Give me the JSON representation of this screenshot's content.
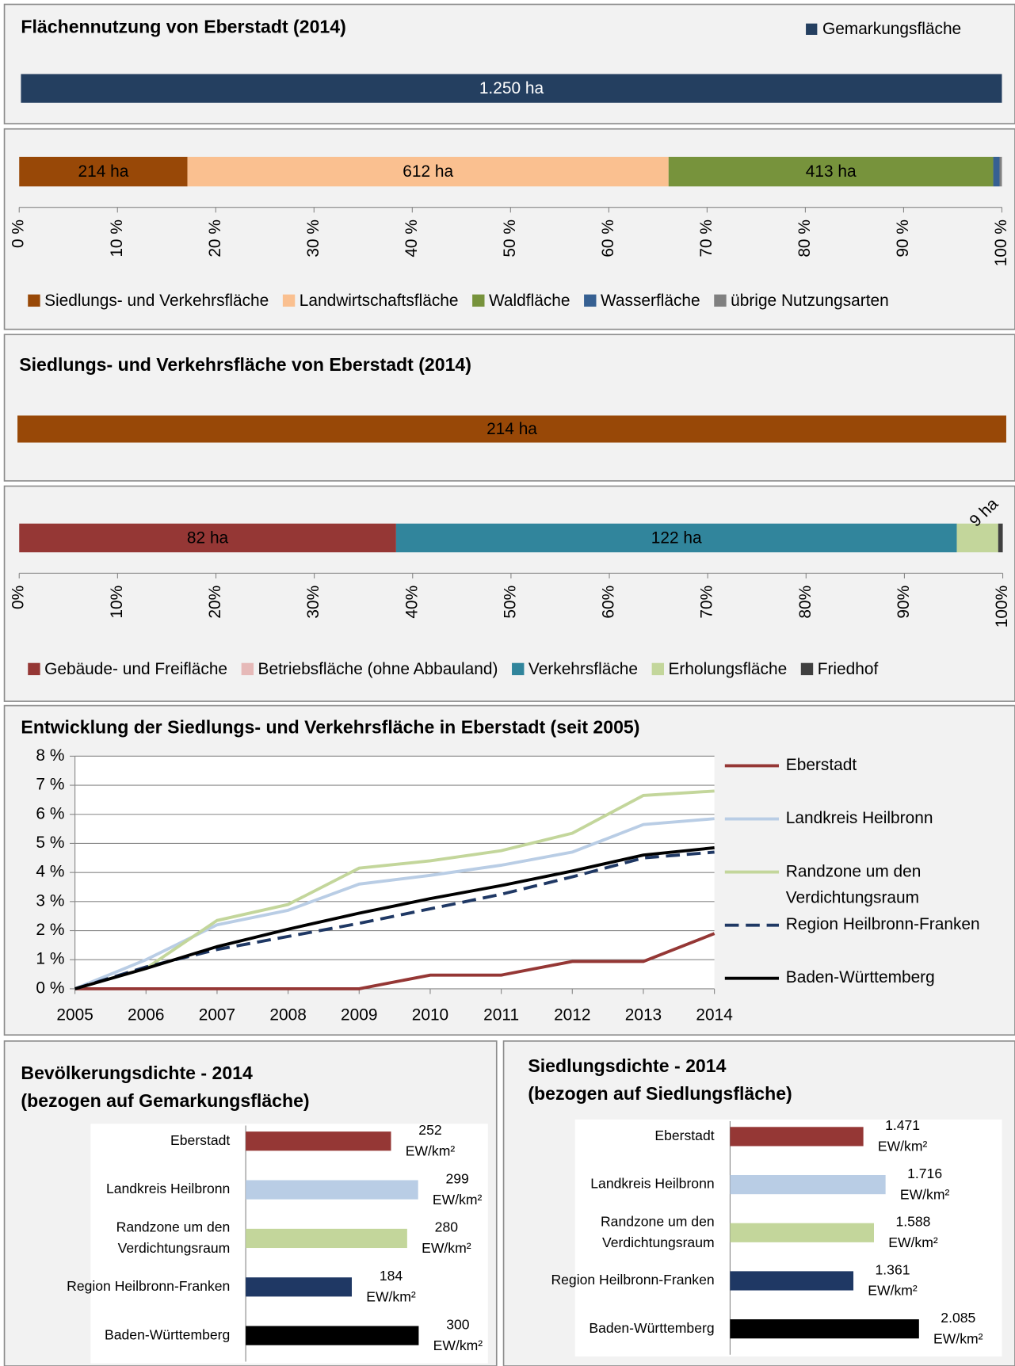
{
  "chart_data": [
    {
      "type": "bar_total",
      "title": "Flächennutzung von Eberstadt (2014)",
      "series": [
        {
          "name": "Gemarkungsfläche",
          "color": "#243f60",
          "values": [
            1250
          ],
          "value_labels": [
            "1.250 ha"
          ]
        }
      ]
    },
    {
      "type": "bar_percent",
      "series": [
        {
          "name": "Siedlungs- und Verkehrsfläche",
          "color": "#984807",
          "values": [
            214
          ],
          "value_labels": [
            "214 ha"
          ]
        },
        {
          "name": "Landwirtschaftsfläche",
          "color": "#fac090",
          "values": [
            612
          ],
          "value_labels": [
            "612 ha"
          ]
        },
        {
          "name": "Waldfläche",
          "color": "#77933c",
          "values": [
            413
          ],
          "value_labels": [
            "413 ha"
          ]
        },
        {
          "name": "Wasserfläche",
          "color": "#366092",
          "values": [
            8
          ]
        },
        {
          "name": "übrige Nutzungsarten",
          "color": "#808080",
          "values": [
            3
          ]
        }
      ],
      "xlim": [
        0,
        100
      ],
      "xticks": [
        {
          "value": 0,
          "label": "0 %"
        },
        {
          "value": 10,
          "label": "10 %"
        },
        {
          "value": 20,
          "label": "20 %"
        },
        {
          "value": 30,
          "label": "30 %"
        },
        {
          "value": 40,
          "label": "40 %"
        },
        {
          "value": 50,
          "label": "50 %"
        },
        {
          "value": 60,
          "label": "60 %"
        },
        {
          "value": 70,
          "label": "70 %"
        },
        {
          "value": 80,
          "label": "80 %"
        },
        {
          "value": 90,
          "label": "90 %"
        },
        {
          "value": 100,
          "label": "100 %"
        }
      ]
    },
    {
      "type": "bar_total",
      "title": "Siedlungs- und Verkehrsfläche von Eberstadt (2014)",
      "series": [
        {
          "color": "#984807",
          "values": [
            214
          ],
          "value_labels": [
            "214 ha"
          ]
        }
      ]
    },
    {
      "type": "bar_percent",
      "series": [
        {
          "name": "Gebäude- und Freifläche",
          "color": "#953735",
          "values": [
            82
          ],
          "value_labels": [
            "82 ha"
          ]
        },
        {
          "name": "Betriebsfläche (ohne Abbauland)",
          "color": "#e6b9b8",
          "values": [
            0
          ]
        },
        {
          "name": "Verkehrsfläche",
          "color": "#31859c",
          "values": [
            122
          ],
          "value_labels": [
            "122 ha"
          ]
        },
        {
          "name": "Erholungsfläche",
          "color": "#c3d69b",
          "values": [
            9
          ],
          "value_labels": [
            "9 ha"
          ]
        },
        {
          "name": "Friedhof",
          "color": "#404040",
          "values": [
            1
          ]
        }
      ],
      "xlim": [
        0,
        100
      ],
      "xticks": [
        {
          "value": 0,
          "label": "0%"
        },
        {
          "value": 10,
          "label": "10%"
        },
        {
          "value": 20,
          "label": "20%"
        },
        {
          "value": 30,
          "label": "30%"
        },
        {
          "value": 40,
          "label": "40%"
        },
        {
          "value": 50,
          "label": "50%"
        },
        {
          "value": 60,
          "label": "60%"
        },
        {
          "value": 70,
          "label": "70%"
        },
        {
          "value": 80,
          "label": "80%"
        },
        {
          "value": 90,
          "label": "90%"
        },
        {
          "value": 100,
          "label": "100%"
        }
      ]
    },
    {
      "type": "line",
      "title": "Entwicklung der Siedlungs- und Verkehrsfläche in Eberstadt (seit 2005)",
      "x": [
        2005,
        2006,
        2007,
        2008,
        2009,
        2010,
        2011,
        2012,
        2013,
        2014
      ],
      "xlim": [
        2005,
        2014
      ],
      "xticks": [
        2005,
        2006,
        2007,
        2008,
        2009,
        2010,
        2011,
        2012,
        2013,
        2014
      ],
      "ylim": [
        0,
        8
      ],
      "yticks": [
        {
          "value": 0,
          "label": "0 %"
        },
        {
          "value": 1,
          "label": "1 %"
        },
        {
          "value": 2,
          "label": "2 %"
        },
        {
          "value": 3,
          "label": "3 %"
        },
        {
          "value": 4,
          "label": "4 %"
        },
        {
          "value": 5,
          "label": "5 %"
        },
        {
          "value": 6,
          "label": "6 %"
        },
        {
          "value": 7,
          "label": "7 %"
        },
        {
          "value": 8,
          "label": "8 %"
        }
      ],
      "grid": true,
      "legend": "right",
      "series": [
        {
          "name": "Eberstadt",
          "color": "#953735",
          "values": [
            0,
            0,
            0,
            0,
            0,
            0.47,
            0.47,
            0.94,
            0.94,
            1.9
          ]
        },
        {
          "name": "Landkreis Heilbronn",
          "color": "#b9cde5",
          "values": [
            0,
            1.0,
            2.2,
            2.7,
            3.6,
            3.9,
            4.25,
            4.7,
            5.65,
            5.85
          ]
        },
        {
          "name": "Randzone um den Verdichtungsraum",
          "color": "#c3d69b",
          "values": [
            0,
            0.7,
            2.35,
            2.9,
            4.15,
            4.4,
            4.75,
            5.35,
            6.65,
            6.8
          ]
        },
        {
          "name": "Region Heilbronn-Franken",
          "color": "#1f3864",
          "style": "dashed",
          "values": [
            0,
            0.75,
            1.35,
            1.8,
            2.25,
            2.75,
            3.25,
            3.85,
            4.5,
            4.7
          ]
        },
        {
          "name": "Baden-Württemberg",
          "color": "#000000",
          "values": [
            0,
            0.7,
            1.45,
            2.05,
            2.6,
            3.1,
            3.55,
            4.05,
            4.6,
            4.85
          ]
        }
      ]
    },
    {
      "type": "hbar",
      "title": "Bevölkerungsdichte - 2014",
      "subtitle": "(bezogen auf Gemarkungsfläche)",
      "categories": [
        "Eberstadt",
        "Landkreis Heilbronn",
        "Randzone um den Verdichtungsraum",
        "Region Heilbronn-Franken",
        "Baden-Württemberg"
      ],
      "values": [
        252,
        299,
        280,
        184,
        300
      ],
      "value_labels": [
        "252 EW/km²",
        "299 EW/km²",
        "280 EW/km²",
        "184 EW/km²",
        "300 EW/km²"
      ],
      "colors": [
        "#953735",
        "#b9cde5",
        "#c3d69b",
        "#1f3864",
        "#000000"
      ],
      "xlim": [
        0,
        420
      ]
    },
    {
      "type": "hbar",
      "title": "Siedlungsdichte - 2014",
      "subtitle": "(bezogen auf Siedlungsfläche)",
      "categories": [
        "Eberstadt",
        "Landkreis Heilbronn",
        "Randzone um den Verdichtungsraum",
        "Region Heilbronn-Franken",
        "Baden-Württemberg"
      ],
      "values": [
        1471,
        1716,
        1588,
        1361,
        2085
      ],
      "value_labels": [
        "1.471 EW/km²",
        "1.716 EW/km²",
        "1.588 EW/km²",
        "1.361 EW/km²",
        "2.085 EW/km²"
      ],
      "colors": [
        "#953735",
        "#b9cde5",
        "#c3d69b",
        "#1f3864",
        "#000000"
      ],
      "xlim": [
        0,
        3000
      ]
    }
  ]
}
